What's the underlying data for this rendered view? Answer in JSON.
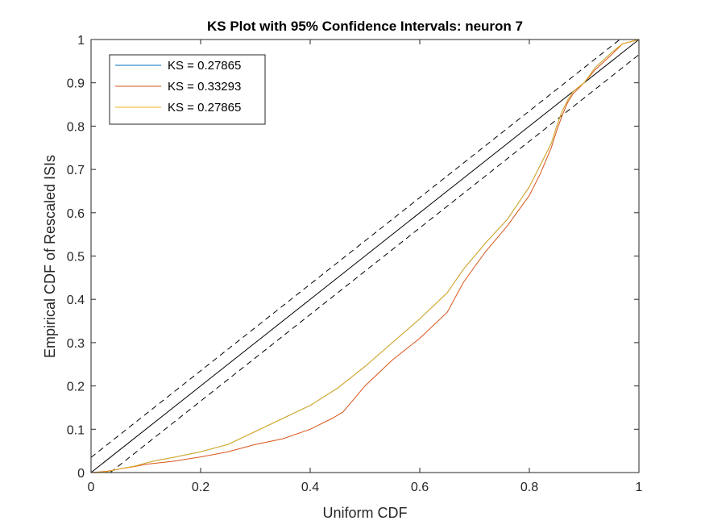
{
  "chart_data": {
    "type": "line",
    "title": "KS Plot with 95% Confidence Intervals: neuron 7",
    "xlabel": "Uniform CDF",
    "ylabel": "Empirical CDF of Rescaled ISIs",
    "xlim": [
      0,
      1
    ],
    "ylim": [
      0,
      1
    ],
    "xticks": [
      0,
      0.2,
      0.4,
      0.6,
      0.8,
      1
    ],
    "yticks": [
      0,
      0.1,
      0.2,
      0.3,
      0.4,
      0.5,
      0.6,
      0.7,
      0.8,
      0.9,
      1
    ],
    "xtick_labels": [
      "0",
      "0.2",
      "0.4",
      "0.6",
      "0.8",
      "1"
    ],
    "ytick_labels": [
      "0",
      "0.1",
      "0.2",
      "0.3",
      "0.4",
      "0.5",
      "0.6",
      "0.7",
      "0.8",
      "0.9",
      "1"
    ],
    "grid": false,
    "legend_position": "top-left",
    "reference_lines": {
      "identity": {
        "x": [
          0,
          1
        ],
        "y": [
          0,
          1
        ],
        "style": "solid",
        "color": "#000000"
      },
      "upper_bound": {
        "x": [
          0,
          0.965
        ],
        "y": [
          0.035,
          1
        ],
        "style": "dashed",
        "color": "#000000"
      },
      "lower_bound": {
        "x": [
          0.035,
          1
        ],
        "y": [
          0,
          0.965
        ],
        "style": "dashed",
        "color": "#000000"
      }
    },
    "series": [
      {
        "name": "KS = 0.27865",
        "color": "#0072BD",
        "x": [
          0,
          0.03,
          0.05,
          0.08,
          0.1,
          0.12,
          0.15,
          0.2,
          0.25,
          0.3,
          0.35,
          0.4,
          0.45,
          0.5,
          0.55,
          0.6,
          0.65,
          0.68,
          0.72,
          0.76,
          0.8,
          0.82,
          0.84,
          0.85,
          0.86,
          0.87,
          0.88,
          0.9,
          0.92,
          0.95,
          0.97,
          1
        ],
        "y": [
          0,
          0.002,
          0.008,
          0.015,
          0.022,
          0.028,
          0.035,
          0.048,
          0.065,
          0.095,
          0.125,
          0.155,
          0.195,
          0.245,
          0.3,
          0.355,
          0.415,
          0.47,
          0.53,
          0.585,
          0.66,
          0.71,
          0.76,
          0.8,
          0.835,
          0.86,
          0.88,
          0.9,
          0.935,
          0.97,
          0.99,
          1
        ]
      },
      {
        "name": "KS = 0.33293",
        "color": "#D95319",
        "x": [
          0,
          0.03,
          0.05,
          0.08,
          0.1,
          0.15,
          0.2,
          0.25,
          0.3,
          0.35,
          0.4,
          0.44,
          0.46,
          0.5,
          0.55,
          0.6,
          0.65,
          0.68,
          0.72,
          0.76,
          0.8,
          0.82,
          0.84,
          0.85,
          0.86,
          0.87,
          0.88,
          0.9,
          0.92,
          0.95,
          0.97,
          1
        ],
        "y": [
          0,
          0.003,
          0.008,
          0.014,
          0.019,
          0.026,
          0.036,
          0.048,
          0.065,
          0.078,
          0.1,
          0.125,
          0.14,
          0.2,
          0.26,
          0.31,
          0.37,
          0.44,
          0.51,
          0.57,
          0.64,
          0.69,
          0.75,
          0.79,
          0.825,
          0.855,
          0.875,
          0.9,
          0.93,
          0.965,
          0.99,
          1
        ]
      },
      {
        "name": "KS = 0.27865",
        "color": "#EDB120",
        "x": [
          0,
          0.03,
          0.05,
          0.08,
          0.1,
          0.12,
          0.15,
          0.2,
          0.25,
          0.3,
          0.35,
          0.4,
          0.45,
          0.5,
          0.55,
          0.6,
          0.65,
          0.68,
          0.72,
          0.76,
          0.8,
          0.82,
          0.84,
          0.85,
          0.86,
          0.87,
          0.88,
          0.9,
          0.92,
          0.95,
          0.97,
          1
        ],
        "y": [
          0,
          0.002,
          0.008,
          0.015,
          0.022,
          0.028,
          0.035,
          0.048,
          0.065,
          0.095,
          0.125,
          0.155,
          0.195,
          0.245,
          0.3,
          0.355,
          0.415,
          0.47,
          0.53,
          0.585,
          0.66,
          0.71,
          0.76,
          0.8,
          0.835,
          0.86,
          0.88,
          0.9,
          0.935,
          0.97,
          0.99,
          1
        ]
      }
    ]
  }
}
